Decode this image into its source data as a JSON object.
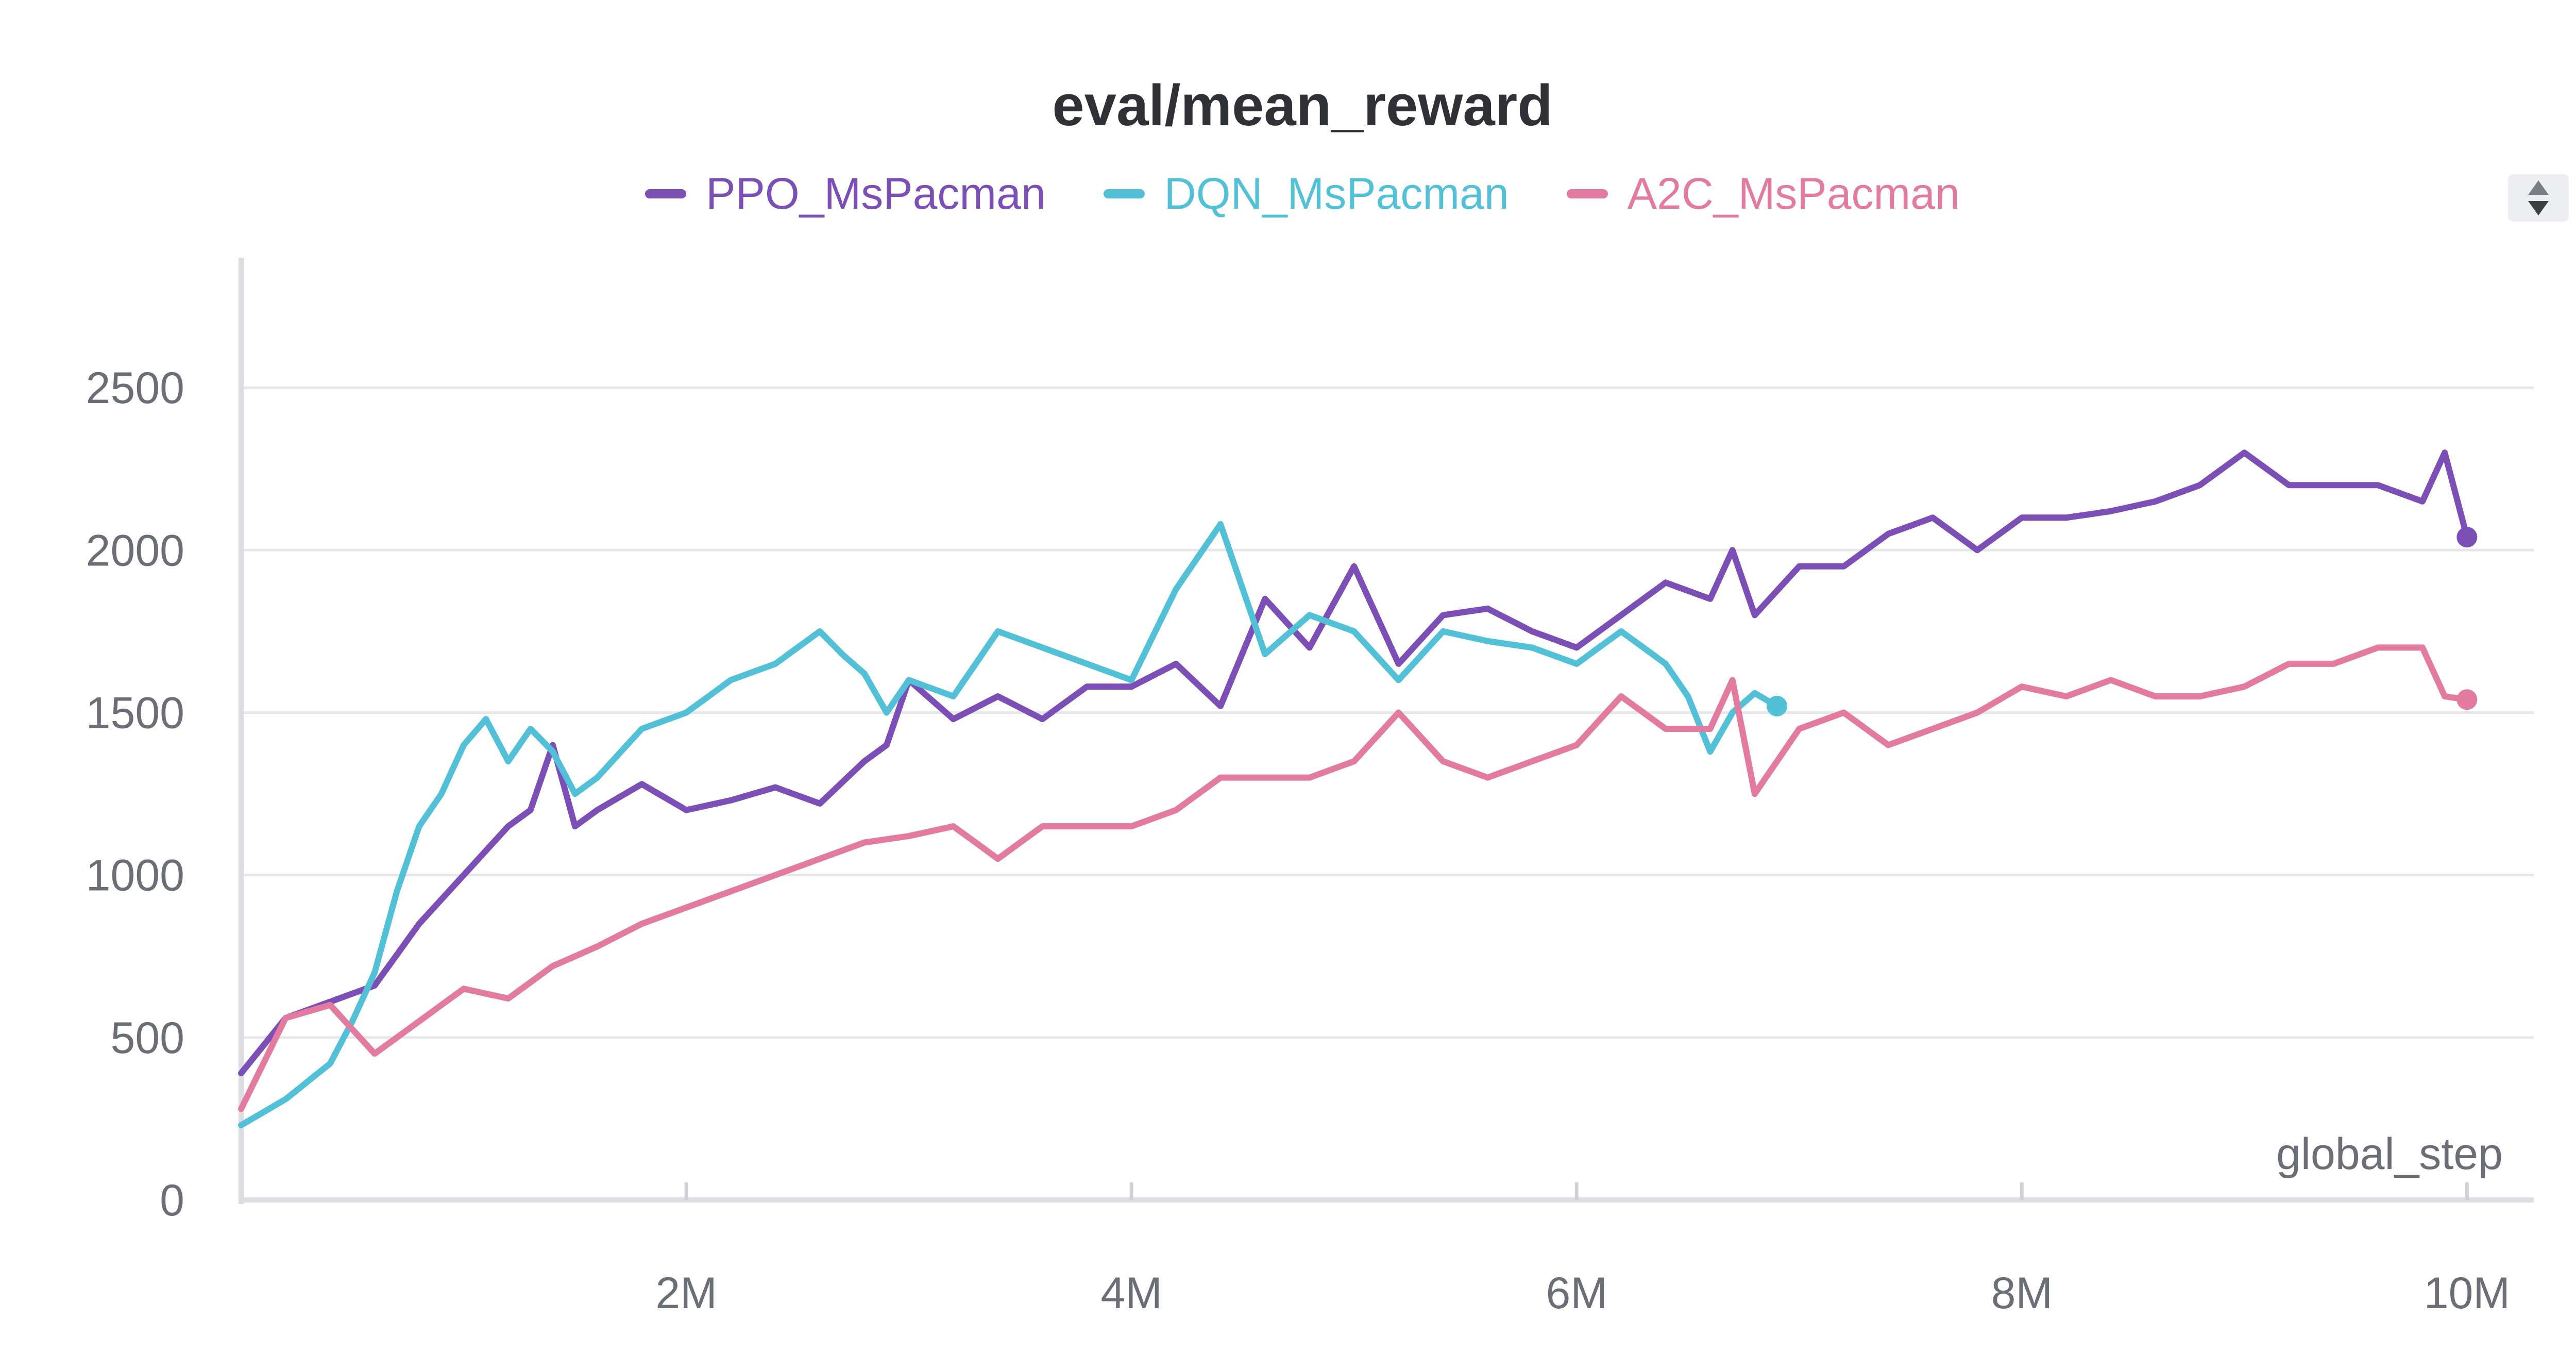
{
  "chart_data": {
    "type": "line",
    "title": "eval/mean_reward",
    "xlabel": "global_step",
    "ylabel": "",
    "xlim": [
      0,
      10300000
    ],
    "ylim": [
      0,
      2900
    ],
    "grid": true,
    "legend_position": "top-center",
    "x_ticks": [
      {
        "value": 2000000,
        "label": "2M"
      },
      {
        "value": 4000000,
        "label": "4M"
      },
      {
        "value": 6000000,
        "label": "6M"
      },
      {
        "value": 8000000,
        "label": "8M"
      },
      {
        "value": 10000000,
        "label": "10M"
      }
    ],
    "y_ticks": [
      {
        "value": 0,
        "label": "0"
      },
      {
        "value": 500,
        "label": "500"
      },
      {
        "value": 1000,
        "label": "1000"
      },
      {
        "value": 1500,
        "label": "1500"
      },
      {
        "value": 2000,
        "label": "2000"
      },
      {
        "value": 2500,
        "label": "2500"
      }
    ],
    "series": [
      {
        "name": "PPO_MsPacman",
        "color": "#7b4fb5",
        "x": [
          0,
          200000,
          400000,
          600000,
          800000,
          1000000,
          1200000,
          1300000,
          1400000,
          1500000,
          1600000,
          1800000,
          2000000,
          2200000,
          2400000,
          2600000,
          2800000,
          2900000,
          3000000,
          3200000,
          3400000,
          3600000,
          3800000,
          4000000,
          4200000,
          4400000,
          4600000,
          4800000,
          5000000,
          5200000,
          5400000,
          5600000,
          5800000,
          6000000,
          6200000,
          6400000,
          6600000,
          6700000,
          6800000,
          7000000,
          7200000,
          7400000,
          7600000,
          7800000,
          8000000,
          8200000,
          8400000,
          8600000,
          8800000,
          9000000,
          9200000,
          9400000,
          9600000,
          9800000,
          9900000,
          10000000
        ],
        "y": [
          390,
          560,
          610,
          660,
          850,
          1000,
          1150,
          1200,
          1400,
          1150,
          1200,
          1280,
          1200,
          1230,
          1270,
          1220,
          1350,
          1400,
          1600,
          1480,
          1550,
          1480,
          1580,
          1580,
          1650,
          1520,
          1850,
          1700,
          1950,
          1650,
          1800,
          1820,
          1750,
          1700,
          1800,
          1900,
          1850,
          2000,
          1800,
          1950,
          1950,
          2050,
          2100,
          2000,
          2100,
          2100,
          2120,
          2150,
          2200,
          2300,
          2200,
          2200,
          2200,
          2150,
          2300,
          2040
        ]
      },
      {
        "name": "DQN_MsPacman",
        "color": "#52c1d8",
        "x": [
          0,
          200000,
          400000,
          500000,
          600000,
          700000,
          800000,
          900000,
          1000000,
          1100000,
          1200000,
          1300000,
          1400000,
          1500000,
          1600000,
          1800000,
          2000000,
          2200000,
          2400000,
          2600000,
          2700000,
          2800000,
          2900000,
          3000000,
          3200000,
          3400000,
          3600000,
          3800000,
          4000000,
          4200000,
          4400000,
          4600000,
          4800000,
          5000000,
          5200000,
          5400000,
          5600000,
          5800000,
          6000000,
          6200000,
          6400000,
          6500000,
          6600000,
          6700000,
          6800000,
          6900000
        ],
        "y": [
          230,
          310,
          420,
          550,
          700,
          950,
          1150,
          1250,
          1400,
          1480,
          1350,
          1450,
          1380,
          1250,
          1300,
          1450,
          1500,
          1600,
          1650,
          1750,
          1680,
          1620,
          1500,
          1600,
          1550,
          1750,
          1700,
          1650,
          1600,
          1880,
          2080,
          1680,
          1800,
          1750,
          1600,
          1750,
          1720,
          1700,
          1650,
          1750,
          1650,
          1550,
          1380,
          1500,
          1560,
          1520
        ]
      },
      {
        "name": "A2C_MsPacman",
        "color": "#e37ba0",
        "x": [
          0,
          200000,
          400000,
          600000,
          800000,
          1000000,
          1200000,
          1400000,
          1600000,
          1800000,
          2000000,
          2200000,
          2400000,
          2600000,
          2800000,
          3000000,
          3200000,
          3400000,
          3600000,
          3800000,
          4000000,
          4200000,
          4400000,
          4600000,
          4800000,
          5000000,
          5200000,
          5400000,
          5600000,
          5800000,
          6000000,
          6200000,
          6400000,
          6600000,
          6700000,
          6800000,
          7000000,
          7200000,
          7400000,
          7600000,
          7800000,
          8000000,
          8200000,
          8400000,
          8600000,
          8800000,
          9000000,
          9200000,
          9400000,
          9600000,
          9800000,
          9900000,
          10000000
        ],
        "y": [
          280,
          560,
          600,
          450,
          550,
          650,
          620,
          720,
          780,
          850,
          900,
          950,
          1000,
          1050,
          1100,
          1120,
          1150,
          1050,
          1150,
          1150,
          1150,
          1200,
          1300,
          1300,
          1300,
          1350,
          1500,
          1350,
          1300,
          1350,
          1400,
          1550,
          1450,
          1450,
          1600,
          1250,
          1450,
          1500,
          1400,
          1450,
          1500,
          1580,
          1550,
          1600,
          1550,
          1550,
          1580,
          1650,
          1650,
          1700,
          1700,
          1550,
          1540
        ]
      }
    ]
  },
  "legend_scroll_glyphs": {
    "up": "▲",
    "down": "▼"
  }
}
